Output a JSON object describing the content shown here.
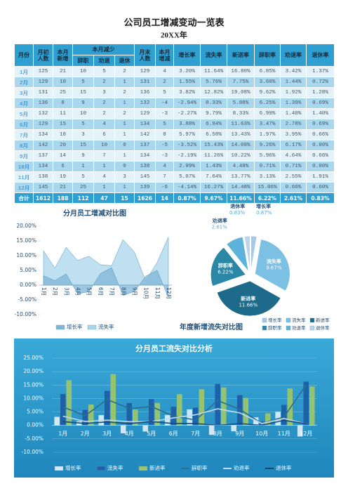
{
  "header": {
    "title": "公司员工增减变动一览表",
    "subtitle": "20XX年"
  },
  "table": {
    "group_header": "本月减少",
    "columns": [
      "月份",
      "月初人数",
      "本月新增",
      "辞职",
      "劝退",
      "退休",
      "月末人数",
      "本月增减",
      "增长率",
      "流失率",
      "新进率",
      "辞职率",
      "劝退率",
      "退休率"
    ],
    "rows": [
      [
        "1月",
        125,
        21,
        10,
        5,
        2,
        129,
        4,
        "3.20%",
        "11.64%",
        "16.80%",
        "6.85%",
        "3.42%",
        "1.37%"
      ],
      [
        "2月",
        129,
        10,
        5,
        2,
        1,
        131,
        2,
        "1.55%",
        "5.76%",
        "7.75%",
        "3.60%",
        "1.44%",
        "0.72%"
      ],
      [
        "3月",
        131,
        25,
        15,
        3,
        2,
        136,
        5,
        "3.82%",
        "12.82%",
        "19.08%",
        "9.62%",
        "1.92%",
        "1.28%"
      ],
      [
        "4月",
        136,
        8,
        9,
        2,
        1,
        132,
        -4,
        "-2.94%",
        "8.33%",
        "5.88%",
        "6.25%",
        "1.39%",
        "0.69%"
      ],
      [
        "5月",
        132,
        11,
        10,
        2,
        2,
        129,
        -3,
        "-2.27%",
        "9.79%",
        "8.33%",
        "6.99%",
        "1.40%",
        "1.40%"
      ],
      [
        "6月",
        129,
        15,
        5,
        4,
        1,
        134,
        5,
        "3.88%",
        "6.94%",
        "11.63%",
        "3.47%",
        "2.78%",
        "0.69%"
      ],
      [
        "7月",
        134,
        18,
        3,
        6,
        1,
        142,
        8,
        "5.97%",
        "6.58%",
        "13.43%",
        "1.97%",
        "3.95%",
        "0.66%"
      ],
      [
        "8月",
        142,
        20,
        15,
        10,
        0,
        137,
        -5,
        "-3.52%",
        "15.43%",
        "14.08%",
        "9.26%",
        "6.17%",
        "0.00%"
      ],
      [
        "9月",
        137,
        14,
        9,
        7,
        1,
        134,
        -3,
        "-2.19%",
        "11.26%",
        "10.22%",
        "5.96%",
        "4.64%",
        "0.66%"
      ],
      [
        "10月",
        134,
        6,
        1,
        1,
        0,
        138,
        4,
        "2.99%",
        "1.43%",
        "4.48%",
        "0.71%",
        "0.71%",
        "0.00%"
      ],
      [
        "11月",
        138,
        19,
        5,
        4,
        3,
        145,
        7,
        "5.07%",
        "7.64%",
        "13.77%",
        "3.13%",
        "2.55%",
        "1.91%"
      ],
      [
        "12月",
        145,
        21,
        25,
        1,
        1,
        139,
        -6,
        "-4.14%",
        "16.27%",
        "14.48%",
        "15.06%",
        "0.60%",
        "0.60%"
      ],
      [
        "合计",
        1612,
        188,
        112,
        47,
        15,
        1626,
        14,
        "0.87%",
        "9.67%",
        "11.66%",
        "6.22%",
        "2.61%",
        "0.83%"
      ]
    ]
  },
  "chart_data": [
    {
      "type": "area",
      "title": "分月员工增减对比图",
      "categories": [
        "1月",
        "2月",
        "3月",
        "4月",
        "5月",
        "6月",
        "7月",
        "8月",
        "9月",
        "10月",
        "11月",
        "12月"
      ],
      "series": [
        {
          "name": "增长率",
          "color": "#7fb6d6",
          "values": [
            3.2,
            1.55,
            3.82,
            -2.94,
            -2.27,
            3.88,
            5.97,
            -3.52,
            -2.19,
            2.99,
            5.07,
            -4.14
          ]
        },
        {
          "name": "流失率",
          "color": "#a9d6ec",
          "values": [
            11.64,
            5.76,
            12.82,
            8.33,
            9.79,
            6.94,
            6.58,
            15.43,
            11.26,
            1.43,
            7.64,
            16.27
          ]
        }
      ],
      "ylim": [
        -10,
        20
      ],
      "yticks": [
        {
          "value": -10,
          "label": "-10.00%"
        },
        {
          "value": -5,
          "label": "-5.00%"
        },
        {
          "value": 0,
          "label": "0.00%"
        },
        {
          "value": 5,
          "label": "5.00%"
        },
        {
          "value": 10,
          "label": "10.00%"
        },
        {
          "value": 15,
          "label": "15.00%"
        },
        {
          "value": 20,
          "label": "20.00%"
        }
      ],
      "grid": false,
      "legend": "bottom"
    },
    {
      "type": "pie",
      "title": "年度新增流失对比图",
      "categories": [
        "增长率",
        "流失率",
        "新进率",
        "辞职率",
        "劝退率",
        "退休率"
      ],
      "values": [
        0.87,
        9.67,
        11.66,
        6.22,
        2.61,
        0.83
      ],
      "value_labels": [
        "0.87%",
        "9.67%",
        "11.66%",
        "6.22%",
        "2.61%",
        "0.83%"
      ],
      "colors": [
        "#a8c9e6",
        "#7cc0e4",
        "#1d6a8a",
        "#2a87a5",
        "#5db3d9",
        "#bcd5ea"
      ],
      "legend": "bottom-right"
    },
    {
      "type": "bar",
      "title": "分月员工流失对比分析",
      "categories": [
        "1月",
        "2月",
        "3月",
        "4月",
        "5月",
        "6月",
        "7月",
        "8月",
        "9月",
        "10月",
        "11月",
        "12月"
      ],
      "series": [
        {
          "name": "增长率",
          "mark": "bar",
          "color": "#d8ecf8",
          "values": [
            3.2,
            1.55,
            3.82,
            -2.94,
            -2.27,
            3.88,
            5.97,
            -3.52,
            -2.19,
            2.99,
            5.07,
            -4.14
          ]
        },
        {
          "name": "流失率",
          "mark": "bar",
          "color": "#1d5ea6",
          "values": [
            11.64,
            5.76,
            12.82,
            8.33,
            9.79,
            6.94,
            6.58,
            15.43,
            11.26,
            1.43,
            7.64,
            16.27
          ]
        },
        {
          "name": "新进率",
          "mark": "bar",
          "color": "#9cc56c",
          "values": [
            16.8,
            7.75,
            19.08,
            5.88,
            8.33,
            11.63,
            13.43,
            14.08,
            10.22,
            4.48,
            13.77,
            14.48
          ]
        },
        {
          "name": "辞职率",
          "mark": "line",
          "color": "#2b6e8f",
          "values": [
            6.85,
            3.6,
            9.62,
            6.25,
            6.99,
            3.47,
            1.97,
            9.26,
            5.96,
            0.71,
            3.13,
            15.06
          ]
        },
        {
          "name": "劝退率",
          "mark": "line",
          "color": "#bfdcef",
          "values": [
            3.42,
            1.44,
            1.92,
            1.39,
            1.4,
            2.78,
            3.95,
            6.17,
            4.64,
            0.71,
            2.55,
            0.6
          ]
        },
        {
          "name": "退休率",
          "mark": "line",
          "color": "#1a4a78",
          "values": [
            1.37,
            0.72,
            1.28,
            0.69,
            1.4,
            0.69,
            0.66,
            0.0,
            0.66,
            0.0,
            1.91,
            0.6
          ]
        }
      ],
      "ylim": [
        -10,
        25
      ],
      "yticks": [
        {
          "value": -10,
          "label": "-10.00%"
        },
        {
          "value": -5,
          "label": "-5.00%"
        },
        {
          "value": 0,
          "label": "0.00%"
        },
        {
          "value": 5,
          "label": "5.00%"
        },
        {
          "value": 10,
          "label": "10.00%"
        },
        {
          "value": 15,
          "label": "15.00%"
        },
        {
          "value": 20,
          "label": "20.00%"
        },
        {
          "value": 25,
          "label": "25.00%"
        }
      ],
      "grid": true,
      "legend": "bottom"
    }
  ]
}
